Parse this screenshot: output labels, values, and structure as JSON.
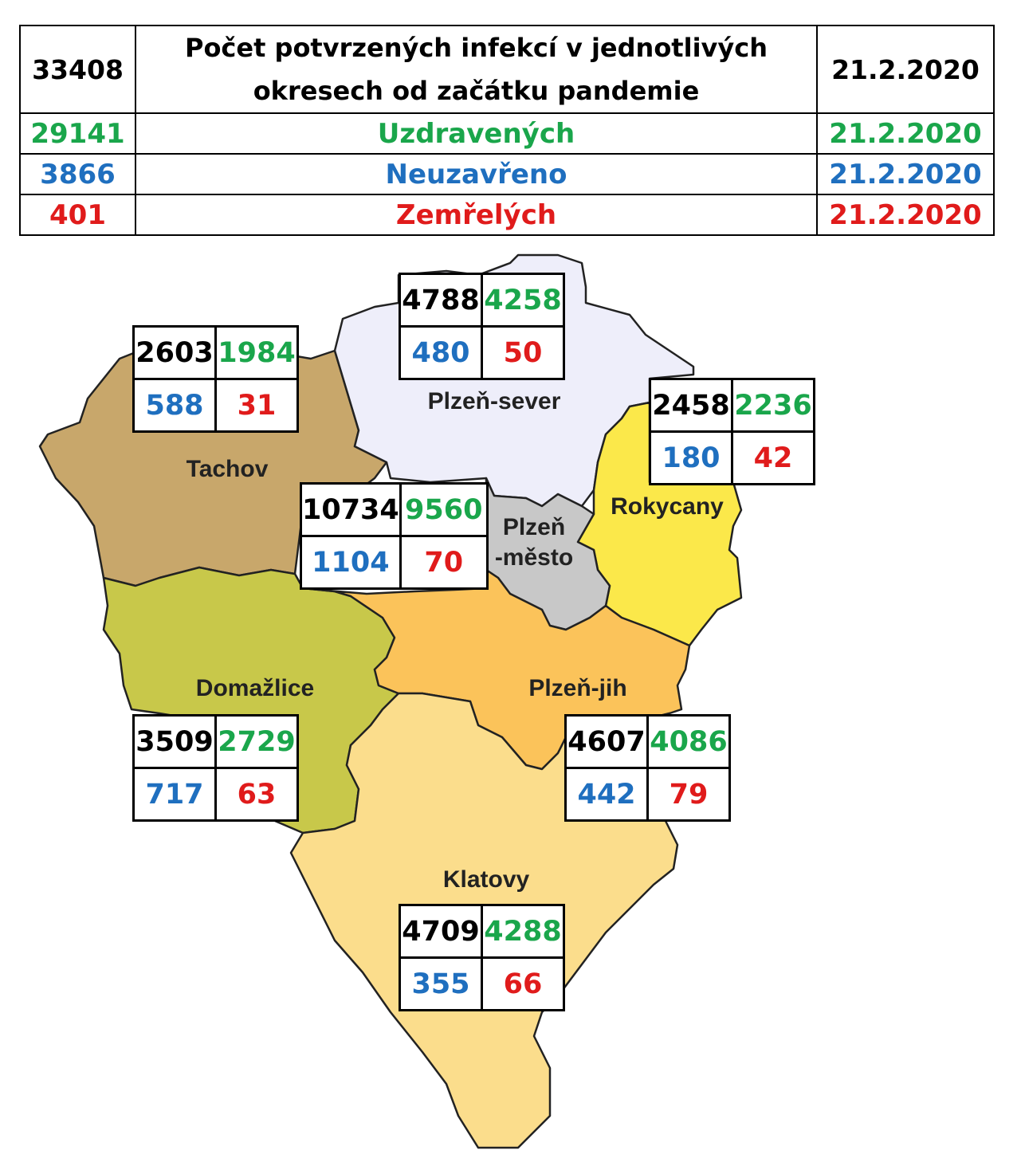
{
  "summary": {
    "total": "33408",
    "title": "Počet potvrzených infekcí v jednotlivých okresech od začátku pandemie",
    "date": "21.2.2020",
    "rows": [
      {
        "value": "29141",
        "label": "Uzdravených",
        "date": "21.2.2020",
        "color": "#1aa64b"
      },
      {
        "value": "3866",
        "label": "Neuzavřeno",
        "date": "21.2.2020",
        "color": "#1f6fbf"
      },
      {
        "value": "401",
        "label": "Zemřelých",
        "date": "21.2.2020",
        "color": "#e01b1b"
      }
    ]
  },
  "colors": {
    "total": "#000000",
    "recovered": "#1aa64b",
    "open": "#1f6fbf",
    "deaths": "#e01b1b"
  },
  "districts": {
    "plzen_sever": {
      "name": "Plzeň-sever",
      "fill": "#eeeefa",
      "total": "4788",
      "recovered": "4258",
      "open": "480",
      "deaths": "50"
    },
    "tachov": {
      "name": "Tachov",
      "fill": "#c8a76b",
      "total": "2603",
      "recovered": "1984",
      "open": "588",
      "deaths": "31"
    },
    "rokycany": {
      "name": "Rokycany",
      "fill": "#fbe84a",
      "total": "2458",
      "recovered": "2236",
      "open": "180",
      "deaths": "42"
    },
    "plzen_mesto": {
      "name": "Plzeň",
      "name2": "-město",
      "fill": "#c8c8c8",
      "total": "10734",
      "recovered": "9560",
      "open": "1104",
      "deaths": "70"
    },
    "domazlice": {
      "name": "Domažlice",
      "fill": "#c8c84a",
      "total": "3509",
      "recovered": "2729",
      "open": "717",
      "deaths": "63"
    },
    "plzen_jih": {
      "name": "Plzeň-jih",
      "fill": "#fbc35a",
      "total": "4607",
      "recovered": "4086",
      "open": "442",
      "deaths": "79"
    },
    "klatovy": {
      "name": "Klatovy",
      "fill": "#fbdd8c",
      "total": "4709",
      "recovered": "4288",
      "open": "355",
      "deaths": "66"
    }
  }
}
